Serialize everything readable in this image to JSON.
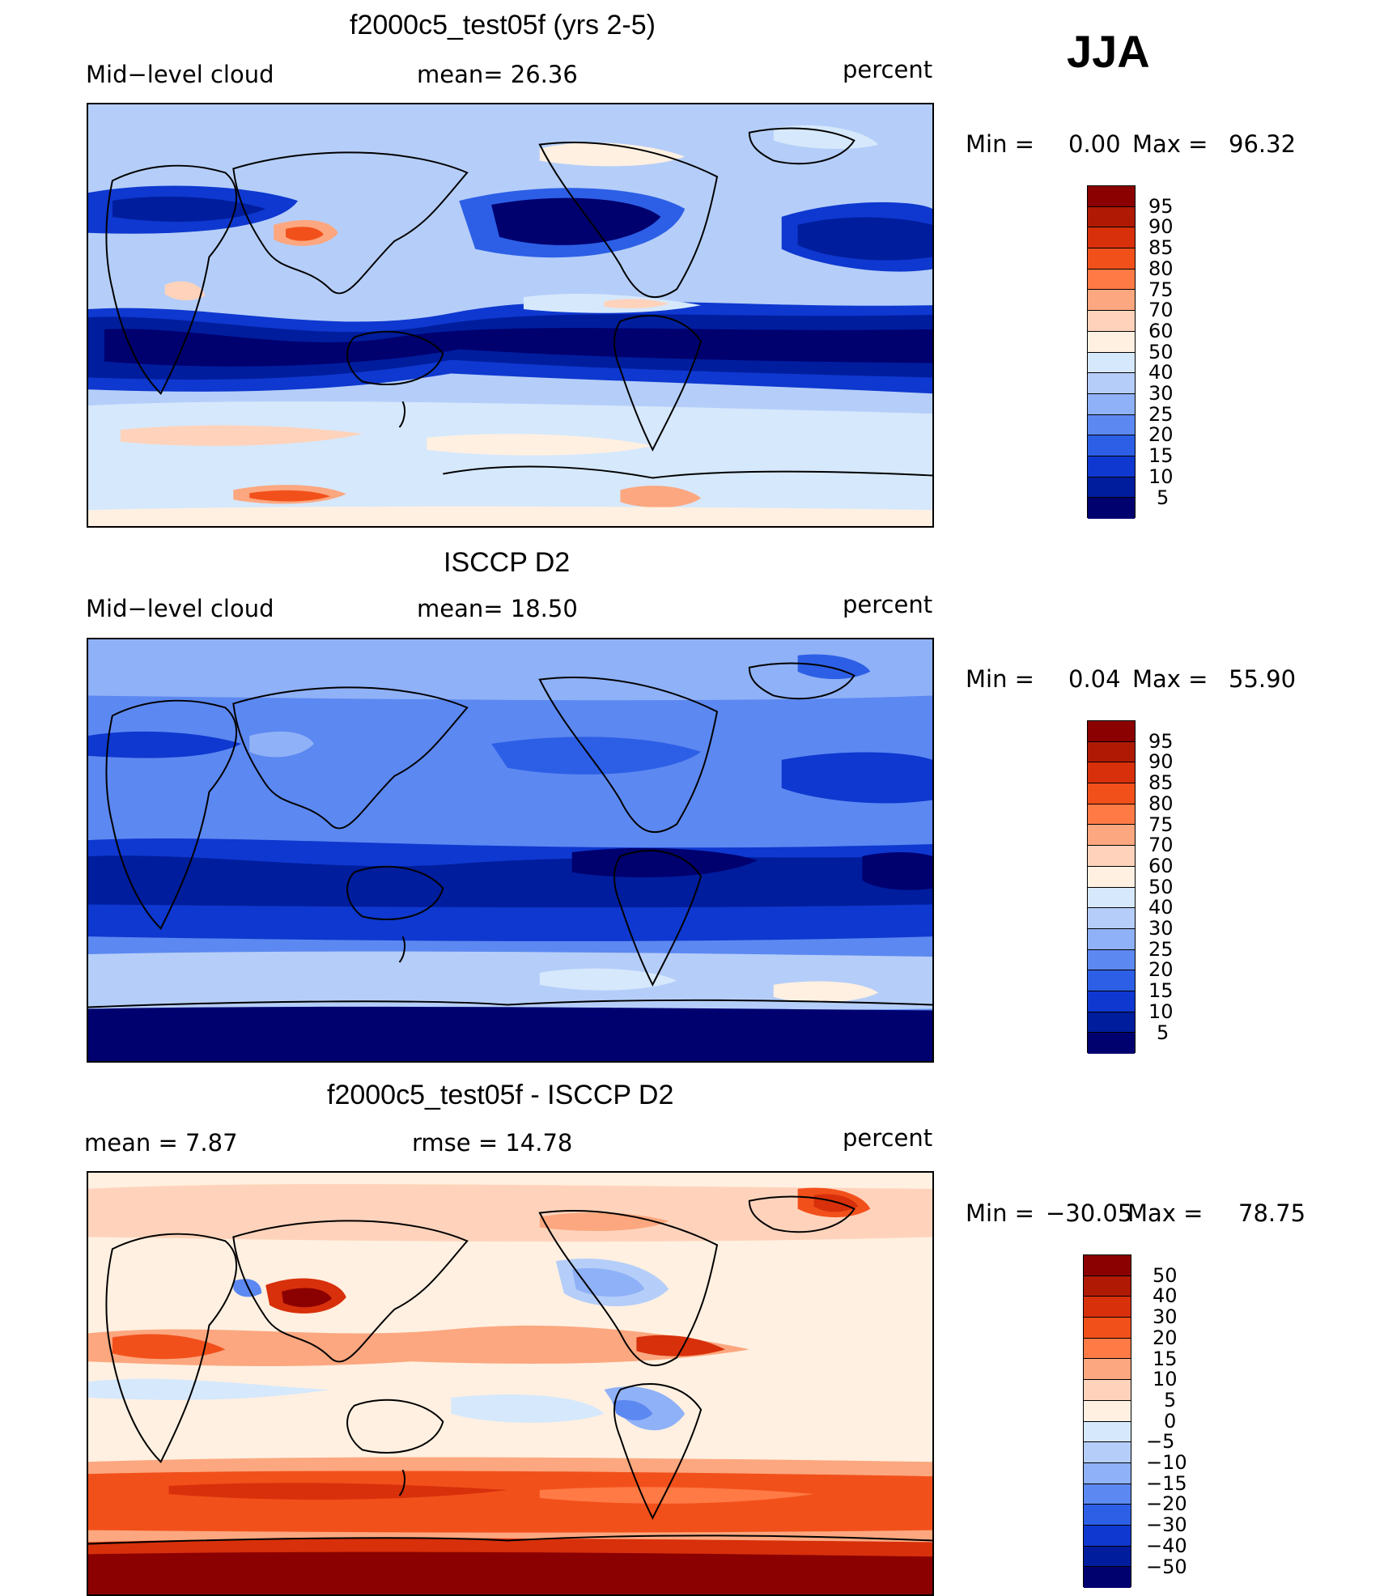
{
  "season": "JJA",
  "chart_data": [
    {
      "type": "heatmap",
      "title": "f2000c5_test05f (yrs 2-5)",
      "left_label": "Mid−level cloud",
      "center_label": "mean=   26.36",
      "units": "percent",
      "min_label": "Min =",
      "min_value": "0.00",
      "max_label": "Max =",
      "max_value": "96.32",
      "mean": 26.36,
      "min": 0.0,
      "max": 96.32,
      "colorbar": {
        "levels": [
          "95",
          "90",
          "85",
          "80",
          "75",
          "70",
          "60",
          "50",
          "40",
          "30",
          "25",
          "20",
          "15",
          "10",
          "5"
        ],
        "colors": [
          "#8b0000",
          "#b01a05",
          "#d7300b",
          "#f2501b",
          "#ff7a45",
          "#fca77f",
          "#ffd3bb",
          "#fff0e1",
          "#d6e8fc",
          "#b5cef9",
          "#8fb1f7",
          "#5c88f1",
          "#2d5fe6",
          "#0e38cf",
          "#001d9d",
          "#00006f"
        ]
      }
    },
    {
      "type": "heatmap",
      "title": "ISCCP D2",
      "left_label": "Mid−level cloud",
      "center_label": "mean=   18.50",
      "units": "percent",
      "min_label": "Min =",
      "min_value": "0.04",
      "max_label": "Max =",
      "max_value": "55.90",
      "mean": 18.5,
      "min": 0.04,
      "max": 55.9,
      "colorbar": {
        "levels": [
          "95",
          "90",
          "85",
          "80",
          "75",
          "70",
          "60",
          "50",
          "40",
          "30",
          "25",
          "20",
          "15",
          "10",
          "5"
        ],
        "colors": [
          "#8b0000",
          "#b01a05",
          "#d7300b",
          "#f2501b",
          "#ff7a45",
          "#fca77f",
          "#ffd3bb",
          "#fff0e1",
          "#d6e8fc",
          "#b5cef9",
          "#8fb1f7",
          "#5c88f1",
          "#2d5fe6",
          "#0e38cf",
          "#001d9d",
          "#00006f"
        ]
      }
    },
    {
      "type": "heatmap",
      "title": "f2000c5_test05f - ISCCP D2",
      "left_label": "mean =    7.87",
      "center_label": "rmse =   14.78",
      "units": "percent",
      "min_label": "Min =",
      "min_value": "−30.05",
      "max_label": "Max =",
      "max_value": "78.75",
      "mean": 7.87,
      "rmse": 14.78,
      "min": -30.05,
      "max": 78.75,
      "colorbar": {
        "levels": [
          "50",
          "40",
          "30",
          "20",
          "15",
          "10",
          "5",
          "0",
          "−5",
          "−10",
          "−15",
          "−20",
          "−30",
          "−40",
          "−50"
        ],
        "colors": [
          "#8b0000",
          "#b01a05",
          "#d7300b",
          "#f2501b",
          "#ff7a45",
          "#fca77f",
          "#ffd3bb",
          "#fff0e1",
          "#d6e8fc",
          "#b5cef9",
          "#8fb1f7",
          "#5c88f1",
          "#2d5fe6",
          "#0e38cf",
          "#001d9d",
          "#00006f"
        ]
      }
    }
  ]
}
